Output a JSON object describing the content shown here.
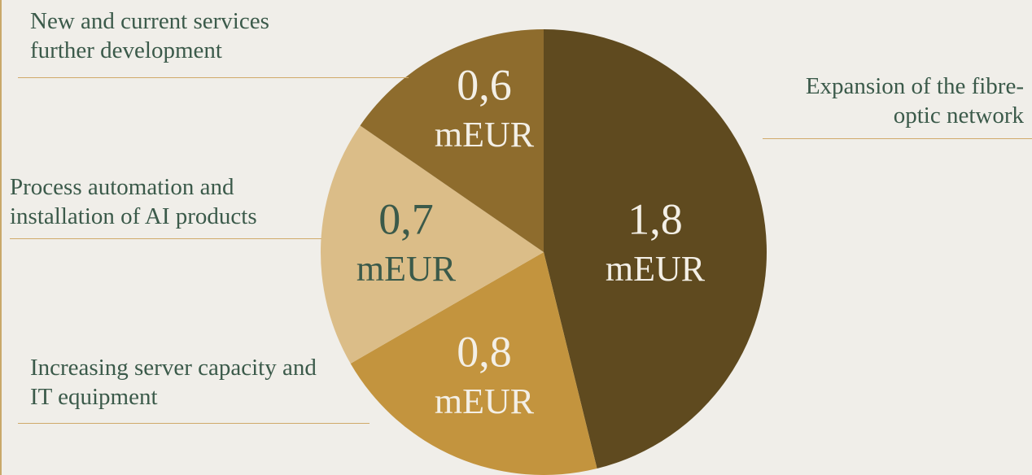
{
  "chart_data": {
    "type": "pie",
    "categories": [
      "Expansion of the fibre-optic network",
      "Increasing server capacity and IT equipment",
      "Process automation and installation of AI products",
      "New and current services further development"
    ],
    "values": [
      1.8,
      0.8,
      0.7,
      0.6
    ],
    "value_labels": [
      "1,8",
      "0,8",
      "0,7",
      "0,6"
    ],
    "unit": "mEUR",
    "colors": [
      "#5f4a1f",
      "#c3943e",
      "#dbbd88",
      "#8e6c2d"
    ]
  }
}
